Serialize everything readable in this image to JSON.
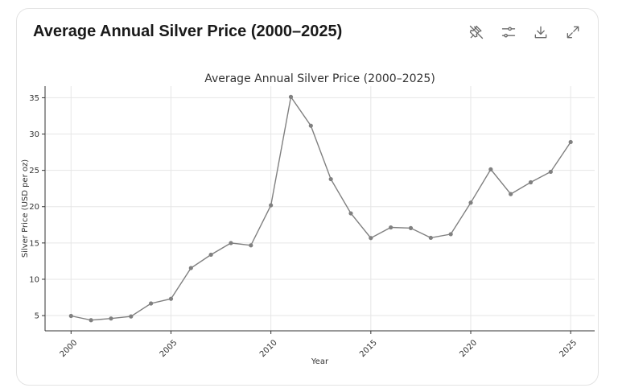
{
  "card": {
    "title": "Average Annual Silver Price (2000–2025)"
  },
  "toolbar": {
    "icons": [
      "pin-off-icon",
      "sliders-icon",
      "download-icon",
      "expand-icon"
    ]
  },
  "chart_data": {
    "type": "line",
    "title": "Average Annual Silver Price (2000–2025)",
    "xlabel": "Year",
    "ylabel": "Silver Price (USD per oz)",
    "x": [
      2000,
      2001,
      2002,
      2003,
      2004,
      2005,
      2006,
      2007,
      2008,
      2009,
      2010,
      2011,
      2012,
      2013,
      2014,
      2015,
      2016,
      2017,
      2018,
      2019,
      2020,
      2021,
      2022,
      2023,
      2024,
      2025
    ],
    "values": [
      4.95,
      4.37,
      4.6,
      4.88,
      6.67,
      7.31,
      11.55,
      13.38,
      14.99,
      14.67,
      20.19,
      35.12,
      31.15,
      23.79,
      19.08,
      15.68,
      17.14,
      17.05,
      15.71,
      16.21,
      20.55,
      25.14,
      21.73,
      23.35,
      24.8,
      28.9
    ],
    "xticks": [
      2000,
      2005,
      2010,
      2015,
      2020,
      2025
    ],
    "yticks": [
      5,
      10,
      15,
      20,
      25,
      30,
      35
    ],
    "xlim": [
      1998.7,
      2026.2
    ],
    "ylim": [
      2.9,
      36.6
    ],
    "grid": true,
    "line_color": "#808080"
  }
}
